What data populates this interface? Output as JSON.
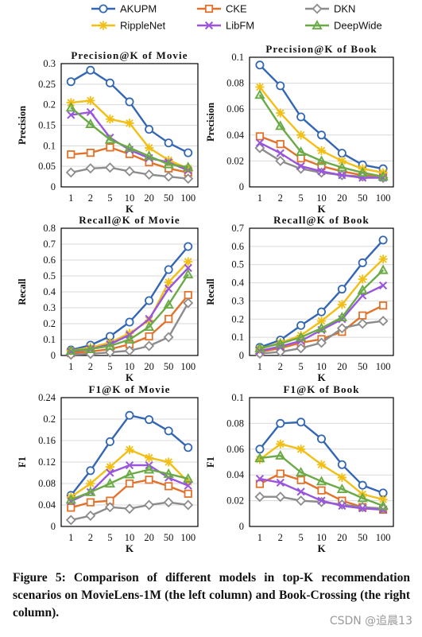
{
  "legend": [
    {
      "name": "AKUPM",
      "color": "#3366b3",
      "marker": "circle"
    },
    {
      "name": "CKE",
      "color": "#e2722a",
      "marker": "square"
    },
    {
      "name": "DKN",
      "color": "#8c8c8c",
      "marker": "diamond"
    },
    {
      "name": "RippleNet",
      "color": "#f2bf17",
      "marker": "star"
    },
    {
      "name": "LibFM",
      "color": "#9955dd",
      "marker": "cross"
    },
    {
      "name": "DeepWide",
      "color": "#6aaa46",
      "marker": "triangle"
    }
  ],
  "chart_data": [
    {
      "type": "line",
      "title": "Precision@K of Movie",
      "xlabel": "K",
      "ylabel": "Precision",
      "categories": [
        "1",
        "2",
        "5",
        "10",
        "20",
        "50",
        "100"
      ],
      "ylim": [
        0,
        0.3
      ],
      "yticks": [
        0,
        0.05,
        0.1,
        0.15,
        0.2,
        0.25,
        0.3
      ],
      "yticklabels": [
        "0",
        "0.05",
        "0.1",
        "0.15",
        "0.2",
        "0.25",
        "0.3"
      ],
      "series": [
        {
          "name": "AKUPM",
          "values": [
            0.256,
            0.284,
            0.253,
            0.207,
            0.14,
            0.107,
            0.083
          ]
        },
        {
          "name": "CKE",
          "values": [
            0.079,
            0.083,
            0.096,
            0.08,
            0.06,
            0.045,
            0.035
          ]
        },
        {
          "name": "DKN",
          "values": [
            0.035,
            0.045,
            0.047,
            0.038,
            0.03,
            0.025,
            0.02
          ]
        },
        {
          "name": "RippleNet",
          "values": [
            0.205,
            0.21,
            0.165,
            0.155,
            0.095,
            0.065,
            0.045
          ]
        },
        {
          "name": "LibFM",
          "values": [
            0.175,
            0.182,
            0.12,
            0.09,
            0.07,
            0.06,
            0.04
          ]
        },
        {
          "name": "DeepWide",
          "values": [
            0.193,
            0.153,
            0.115,
            0.095,
            0.075,
            0.055,
            0.048
          ]
        }
      ]
    },
    {
      "type": "line",
      "title": "Precision@K of Book",
      "xlabel": "K",
      "ylabel": "Precision",
      "categories": [
        "1",
        "2",
        "5",
        "10",
        "20",
        "50",
        "100"
      ],
      "ylim": [
        0,
        0.1
      ],
      "yticks": [
        0,
        0.02,
        0.04,
        0.06,
        0.08,
        0.1
      ],
      "yticklabels": [
        "0",
        "0.02",
        "0.04",
        "0.06",
        "0.08",
        "0.1"
      ],
      "series": [
        {
          "name": "AKUPM",
          "values": [
            0.094,
            0.078,
            0.054,
            0.04,
            0.026,
            0.017,
            0.014
          ]
        },
        {
          "name": "CKE",
          "values": [
            0.039,
            0.033,
            0.022,
            0.016,
            0.012,
            0.009,
            0.008
          ]
        },
        {
          "name": "DKN",
          "values": [
            0.03,
            0.02,
            0.014,
            0.011,
            0.009,
            0.008,
            0.007
          ]
        },
        {
          "name": "RippleNet",
          "values": [
            0.077,
            0.057,
            0.04,
            0.028,
            0.02,
            0.014,
            0.011
          ]
        },
        {
          "name": "LibFM",
          "values": [
            0.034,
            0.026,
            0.016,
            0.012,
            0.009,
            0.007,
            0.007
          ]
        },
        {
          "name": "DeepWide",
          "values": [
            0.071,
            0.047,
            0.027,
            0.02,
            0.015,
            0.011,
            0.008
          ]
        }
      ]
    },
    {
      "type": "line",
      "title": "Recall@K of Movie",
      "xlabel": "K",
      "ylabel": "Recall",
      "categories": [
        "1",
        "2",
        "5",
        "10",
        "20",
        "50",
        "100"
      ],
      "ylim": [
        0,
        0.8
      ],
      "yticks": [
        0,
        0.1,
        0.2,
        0.3,
        0.4,
        0.5,
        0.6,
        0.7,
        0.8
      ],
      "yticklabels": [
        "0",
        "0.1",
        "0.2",
        "0.3",
        "0.4",
        "0.5",
        "0.6",
        "0.7",
        "0.8"
      ],
      "series": [
        {
          "name": "AKUPM",
          "values": [
            0.035,
            0.065,
            0.12,
            0.21,
            0.345,
            0.54,
            0.685
          ]
        },
        {
          "name": "CKE",
          "values": [
            0.015,
            0.025,
            0.04,
            0.07,
            0.12,
            0.23,
            0.38
          ]
        },
        {
          "name": "DKN",
          "values": [
            0.005,
            0.01,
            0.02,
            0.03,
            0.06,
            0.115,
            0.33
          ]
        },
        {
          "name": "RippleNet",
          "values": [
            0.03,
            0.05,
            0.08,
            0.14,
            0.22,
            0.46,
            0.59
          ]
        },
        {
          "name": "LibFM",
          "values": [
            0.025,
            0.04,
            0.07,
            0.13,
            0.23,
            0.42,
            0.55
          ]
        },
        {
          "name": "DeepWide",
          "values": [
            0.03,
            0.04,
            0.06,
            0.1,
            0.18,
            0.32,
            0.51
          ]
        }
      ]
    },
    {
      "type": "line",
      "title": "Recall@K of Book",
      "xlabel": "K",
      "ylabel": "Recall",
      "categories": [
        "1",
        "2",
        "5",
        "10",
        "20",
        "50",
        "100"
      ],
      "ylim": [
        0,
        0.7
      ],
      "yticks": [
        0,
        0.1,
        0.2,
        0.3,
        0.4,
        0.5,
        0.6,
        0.7
      ],
      "yticklabels": [
        "0",
        "0.1",
        "0.2",
        "0.3",
        "0.4",
        "0.5",
        "0.6",
        "0.7"
      ],
      "series": [
        {
          "name": "AKUPM",
          "values": [
            0.045,
            0.085,
            0.165,
            0.24,
            0.365,
            0.51,
            0.635
          ]
        },
        {
          "name": "CKE",
          "values": [
            0.02,
            0.04,
            0.07,
            0.09,
            0.13,
            0.22,
            0.275
          ]
        },
        {
          "name": "DKN",
          "values": [
            0.01,
            0.02,
            0.04,
            0.07,
            0.15,
            0.175,
            0.19
          ]
        },
        {
          "name": "RippleNet",
          "values": [
            0.035,
            0.07,
            0.11,
            0.19,
            0.28,
            0.42,
            0.53
          ]
        },
        {
          "name": "LibFM",
          "values": [
            0.025,
            0.05,
            0.08,
            0.14,
            0.2,
            0.33,
            0.385
          ]
        },
        {
          "name": "DeepWide",
          "values": [
            0.04,
            0.065,
            0.1,
            0.15,
            0.21,
            0.36,
            0.47
          ]
        }
      ]
    },
    {
      "type": "line",
      "title": "F1@K of Movie",
      "xlabel": "K",
      "ylabel": "F1",
      "categories": [
        "1",
        "2",
        "5",
        "10",
        "20",
        "50",
        "100"
      ],
      "ylim": [
        0,
        0.24
      ],
      "yticks": [
        0,
        0.04,
        0.08,
        0.12,
        0.16,
        0.2,
        0.24
      ],
      "yticklabels": [
        "0",
        "0.04",
        "0.08",
        "0.12",
        "0.16",
        "0.2",
        "0.24"
      ],
      "series": [
        {
          "name": "AKUPM",
          "values": [
            0.058,
            0.104,
            0.158,
            0.207,
            0.199,
            0.178,
            0.147
          ]
        },
        {
          "name": "CKE",
          "values": [
            0.035,
            0.045,
            0.048,
            0.08,
            0.087,
            0.075,
            0.061
          ]
        },
        {
          "name": "DKN",
          "values": [
            0.012,
            0.02,
            0.036,
            0.033,
            0.04,
            0.045,
            0.04
          ]
        },
        {
          "name": "RippleNet",
          "values": [
            0.055,
            0.08,
            0.111,
            0.143,
            0.128,
            0.12,
            0.083
          ]
        },
        {
          "name": "LibFM",
          "values": [
            0.047,
            0.064,
            0.1,
            0.114,
            0.114,
            0.091,
            0.076
          ]
        },
        {
          "name": "DeepWide",
          "values": [
            0.05,
            0.064,
            0.08,
            0.097,
            0.106,
            0.098,
            0.089
          ]
        }
      ]
    },
    {
      "type": "line",
      "title": "F1@K of Book",
      "xlabel": "K",
      "ylabel": "F1",
      "categories": [
        "1",
        "2",
        "5",
        "10",
        "20",
        "50",
        "100"
      ],
      "ylim": [
        0,
        0.1
      ],
      "yticks": [
        0,
        0.02,
        0.04,
        0.06,
        0.08,
        0.1
      ],
      "yticklabels": [
        "0",
        "0.02",
        "0.04",
        "0.06",
        "0.08",
        "0.1"
      ],
      "series": [
        {
          "name": "AKUPM",
          "values": [
            0.06,
            0.08,
            0.081,
            0.068,
            0.048,
            0.032,
            0.026
          ]
        },
        {
          "name": "CKE",
          "values": [
            0.033,
            0.041,
            0.036,
            0.028,
            0.02,
            0.015,
            0.013
          ]
        },
        {
          "name": "DKN",
          "values": [
            0.023,
            0.023,
            0.02,
            0.019,
            0.017,
            0.015,
            0.014
          ]
        },
        {
          "name": "RippleNet",
          "values": [
            0.052,
            0.064,
            0.06,
            0.048,
            0.038,
            0.025,
            0.021
          ]
        },
        {
          "name": "LibFM",
          "values": [
            0.037,
            0.034,
            0.027,
            0.02,
            0.016,
            0.014,
            0.013
          ]
        },
        {
          "name": "DeepWide",
          "values": [
            0.053,
            0.055,
            0.042,
            0.035,
            0.029,
            0.022,
            0.016
          ]
        }
      ]
    }
  ],
  "caption": "Figure 5: Comparison of different models in top-K recommendation scenarios on MovieLens-1M (the left column) and Book-Crossing (the right column).",
  "watermark": "CSDN @追晨13"
}
